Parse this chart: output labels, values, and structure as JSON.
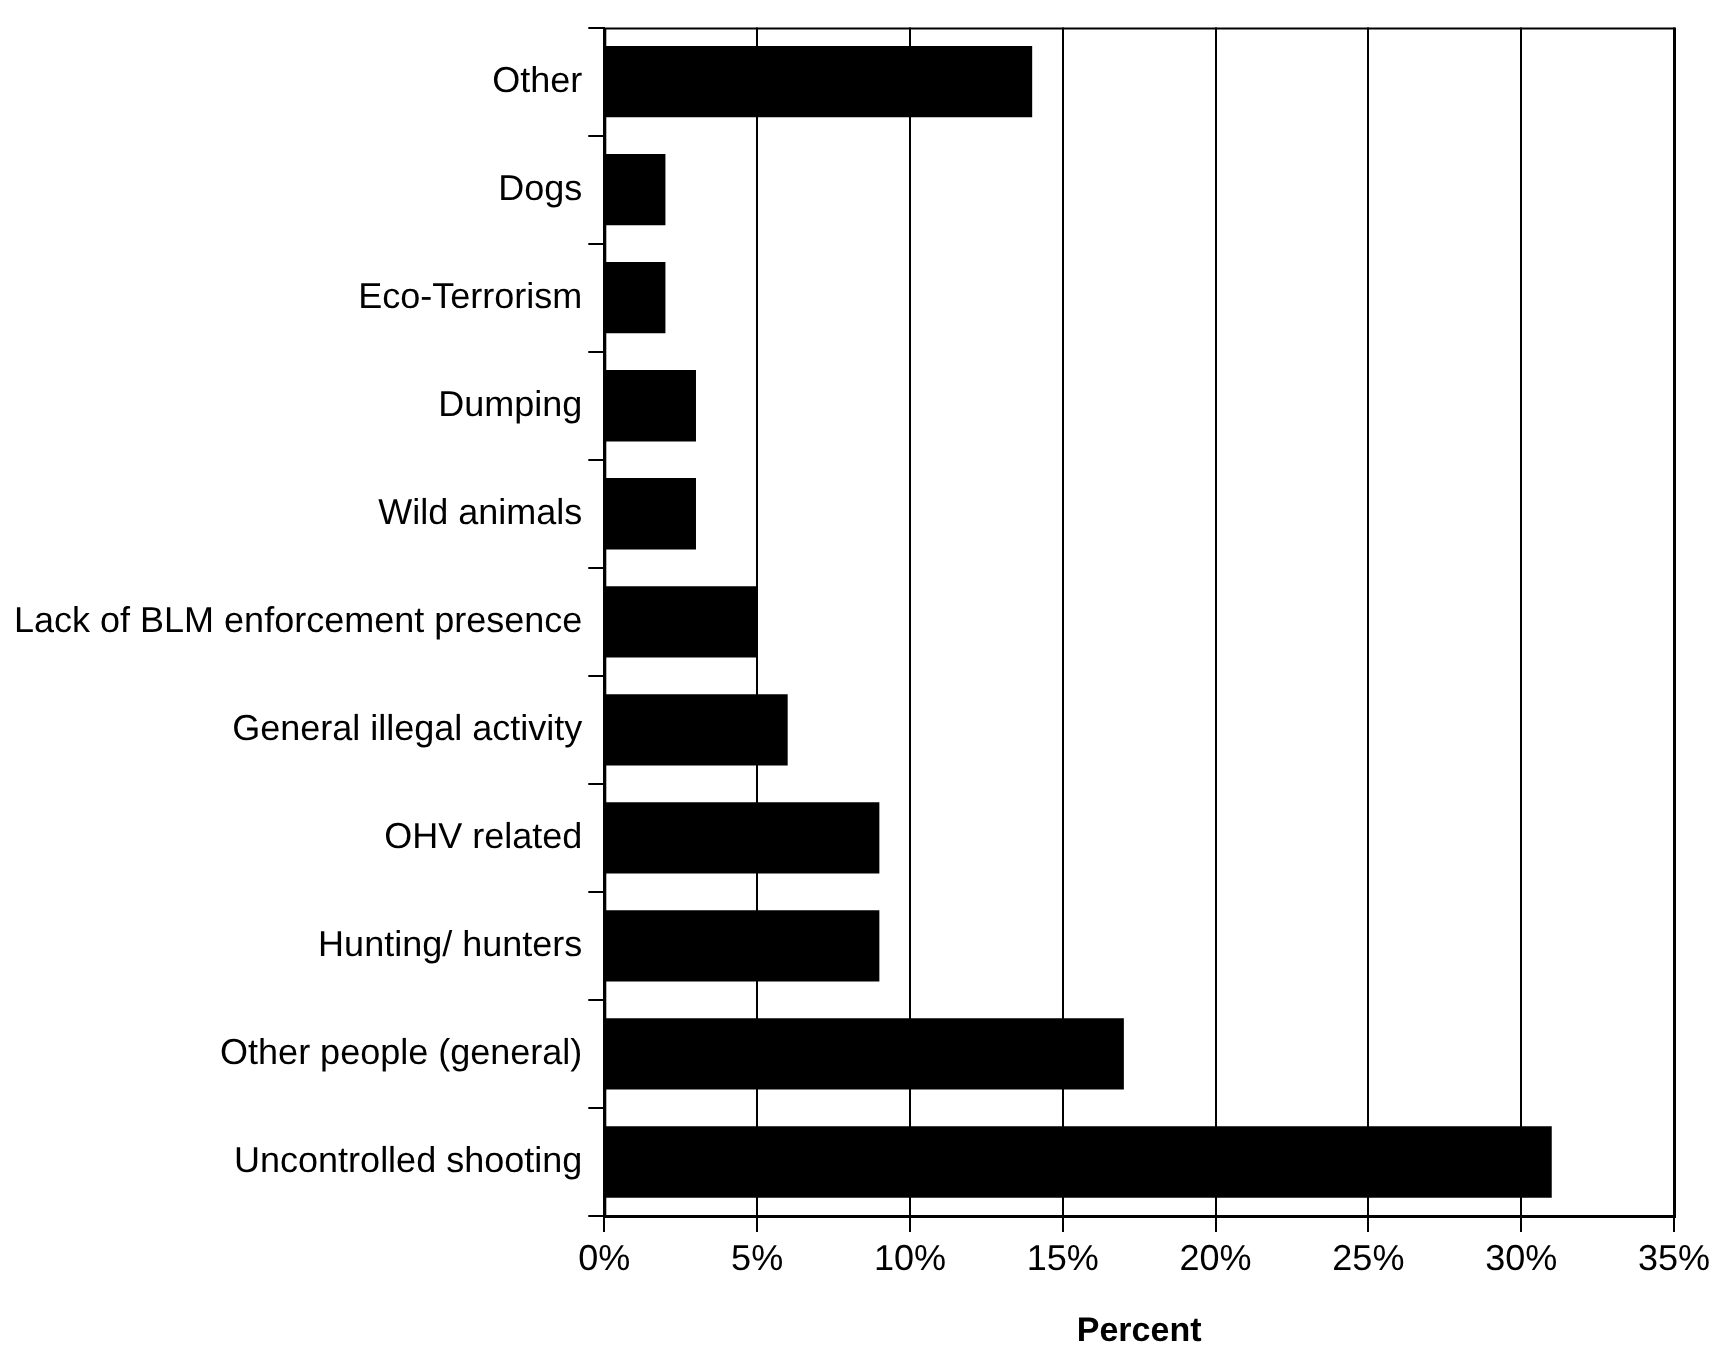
{
  "chart_data": {
    "type": "bar",
    "orientation": "horizontal",
    "xlabel": "Percent",
    "categories": [
      "Other",
      "Dogs",
      "Eco-Terrorism",
      "Dumping",
      "Wild animals",
      "Lack of BLM enforcement presence",
      "General illegal activity",
      "OHV related",
      "Hunting/ hunters",
      "Other people (general)",
      "Uncontrolled shooting"
    ],
    "values": [
      14,
      2,
      2,
      3,
      3,
      5,
      6,
      9,
      9,
      17,
      31
    ],
    "color": "#000000",
    "xlim": [
      0,
      35
    ],
    "xticks": [
      {
        "value": 0,
        "label": "0%"
      },
      {
        "value": 5,
        "label": "5%"
      },
      {
        "value": 10,
        "label": "10%"
      },
      {
        "value": 15,
        "label": "15%"
      },
      {
        "value": 20,
        "label": "20%"
      },
      {
        "value": 25,
        "label": "25%"
      },
      {
        "value": 30,
        "label": "30%"
      },
      {
        "value": 35,
        "label": "35%"
      }
    ],
    "grid": "x",
    "legend": false
  }
}
